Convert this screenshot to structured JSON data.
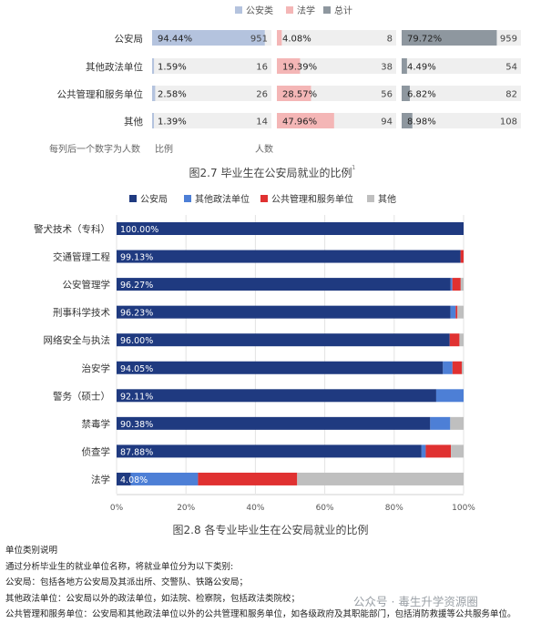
{
  "chart_data": [
    {
      "type": "bar",
      "orientation": "horizontal",
      "title": "图2.7 毕业生在公安局就业的比例",
      "title_superscript": "1",
      "legend": [
        "公安类",
        "法学",
        "总计"
      ],
      "legend_placement": "top",
      "categories": [
        "公安局",
        "其他政法单位",
        "公共管理和服务单位",
        "其他"
      ],
      "panels": [
        {
          "name": "公安类",
          "color": "#b4c3de",
          "percent_labels": [
            "94.44%",
            "1.59%",
            "2.58%",
            "1.39%"
          ],
          "percent": [
            94.44,
            1.59,
            2.58,
            1.39
          ],
          "counts": [
            951,
            16,
            26,
            14
          ]
        },
        {
          "name": "法学",
          "color": "#f4b6b6",
          "percent_labels": [
            "4.08%",
            "19.39%",
            "28.57%",
            "47.96%"
          ],
          "percent": [
            4.08,
            19.39,
            28.57,
            47.96
          ],
          "counts": [
            8,
            38,
            56,
            94
          ]
        },
        {
          "name": "总计",
          "color": "#8e979f",
          "percent_labels": [
            "79.72%",
            "4.49%",
            "6.82%",
            "8.98%"
          ],
          "percent": [
            79.72,
            4.49,
            6.82,
            8.98
          ],
          "counts": [
            959,
            54,
            82,
            108
          ]
        }
      ],
      "footnote": {
        "prefix": "每列后一个数字为人数",
        "ratio_label": "比例",
        "count_label": "人数"
      }
    },
    {
      "type": "bar",
      "orientation": "horizontal",
      "stacked": true,
      "title": "图2.8 各专业毕业生在公安局就业的比例",
      "legend_placement": "top",
      "series": [
        {
          "name": "公安局",
          "color": "#1f3a80"
        },
        {
          "name": "其他政法单位",
          "color": "#4d7fd6"
        },
        {
          "name": "公共管理和服务单位",
          "color": "#e03131"
        },
        {
          "name": "其他",
          "color": "#bfbfbf"
        }
      ],
      "categories": [
        "警犬技术（专科）",
        "交通管理工程",
        "公安管理学",
        "刑事科学技术",
        "网络安全与执法",
        "治安学",
        "警务（硕士）",
        "禁毒学",
        "侦查学",
        "法学"
      ],
      "rows": [
        {
          "label": "100.00%",
          "values": [
            100.0,
            0,
            0,
            0
          ]
        },
        {
          "label": "99.13%",
          "values": [
            99.13,
            0,
            0.87,
            0
          ]
        },
        {
          "label": "96.27%",
          "values": [
            96.27,
            0.5,
            2.4,
            0.83
          ]
        },
        {
          "label": "96.23%",
          "values": [
            96.23,
            1.5,
            0.5,
            1.77
          ]
        },
        {
          "label": "96.00%",
          "values": [
            96.0,
            0,
            2.8,
            1.2
          ]
        },
        {
          "label": "94.05%",
          "values": [
            94.05,
            2.75,
            2.7,
            0.5
          ]
        },
        {
          "label": "92.11%",
          "values": [
            92.11,
            7.89,
            0,
            0
          ]
        },
        {
          "label": "90.38%",
          "values": [
            90.38,
            5.77,
            0,
            3.85
          ]
        },
        {
          "label": "87.88%",
          "values": [
            87.88,
            1.21,
            7.27,
            3.64
          ]
        },
        {
          "label": "4.08%",
          "values": [
            4.08,
            19.39,
            28.57,
            47.96
          ]
        }
      ],
      "xaxis": {
        "ticks": [
          "0%",
          "20%",
          "40%",
          "60%",
          "80%",
          "100%"
        ],
        "range": [
          0,
          100
        ]
      }
    }
  ],
  "notes": {
    "heading": "单位类别说明",
    "lines": [
      "通过分析毕业生的就业单位名称，将就业单位分为以下类别:",
      "公安局：包括各地方公安局及其派出所、交警队、铁路公安局；",
      "其他政法单位：公安局以外的政法单位，如法院、检察院，包括政法类院校；",
      "公共管理和服务单位：公安局和其他政法单位以外的公共管理和服务单位，如各级政府及其职能部门，包括消防救援等公共服务单位。"
    ]
  },
  "watermark": "公众号 · 毒生升学资源圈"
}
